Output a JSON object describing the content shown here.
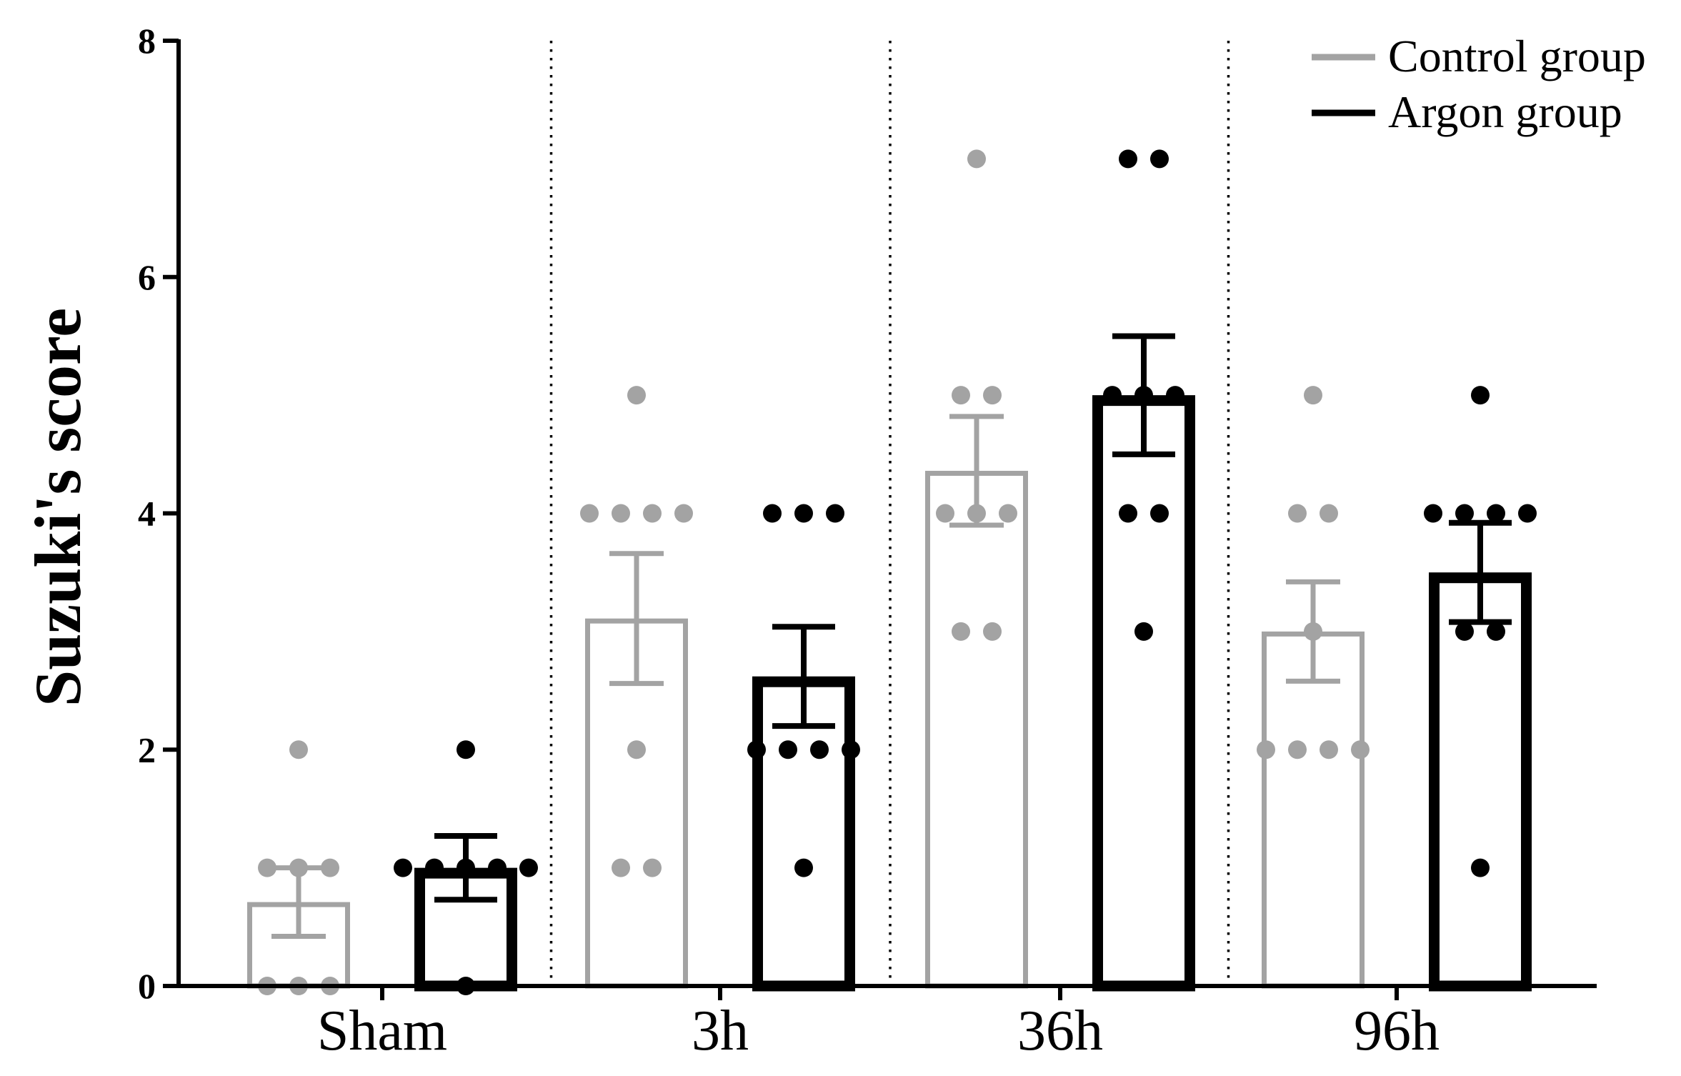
{
  "chart_data": {
    "type": "bar",
    "title": "",
    "xlabel": "",
    "ylabel": "Suzuki's score",
    "ylim": [
      0,
      8
    ],
    "yticks": [
      0,
      2,
      4,
      6,
      8
    ],
    "grid": false,
    "legend_position": "top-right",
    "categories": [
      "Sham",
      "3h",
      "36h",
      "96h"
    ],
    "series": [
      {
        "name": "Control group",
        "color": "#a3a3a3",
        "values": [
          0.71,
          3.11,
          4.36,
          3.0
        ],
        "sem": [
          0.29,
          0.55,
          0.46,
          0.42
        ],
        "points": [
          [
            2,
            1,
            1,
            1,
            0,
            0,
            0
          ],
          [
            5,
            4,
            4,
            4,
            4,
            2,
            1,
            1
          ],
          [
            7,
            5,
            5,
            4,
            4,
            4,
            3,
            3
          ],
          [
            5,
            4,
            4,
            3,
            2,
            2,
            2,
            2
          ]
        ]
      },
      {
        "name": "Argon group",
        "color": "#000000",
        "values": [
          1.0,
          2.62,
          5.0,
          3.5
        ],
        "sem": [
          0.27,
          0.42,
          0.5,
          0.42
        ],
        "points": [
          [
            2,
            1,
            1,
            1,
            1,
            1,
            0
          ],
          [
            4,
            4,
            4,
            2,
            2,
            2,
            2,
            1
          ],
          [
            7,
            7,
            5,
            5,
            5,
            4,
            4,
            3
          ],
          [
            5,
            4,
            4,
            4,
            4,
            3,
            3,
            1
          ]
        ]
      }
    ]
  }
}
